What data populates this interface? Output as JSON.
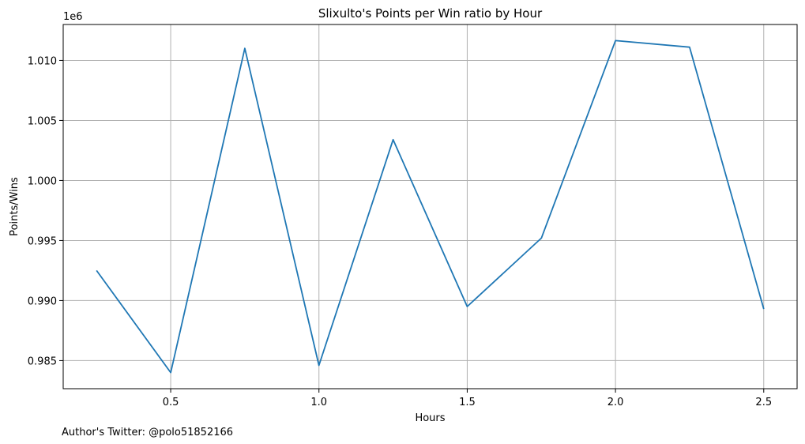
{
  "chart_data": {
    "type": "line",
    "title": "Slixulto's Points per Win ratio by Hour",
    "xlabel": "Hours",
    "ylabel": "Points/Wins",
    "y_offset_label": "1e6",
    "x": [
      0.25,
      0.5,
      0.75,
      1.0,
      1.25,
      1.5,
      1.75,
      2.0,
      2.25,
      2.5
    ],
    "series": [
      {
        "values": [
          992500,
          984000,
          1011000,
          984600,
          1003400,
          989500,
          995200,
          1011650,
          1011100,
          989300
        ],
        "color": "#1f77b4"
      }
    ],
    "xlim": [
      0.1375,
      2.6125
    ],
    "ylim": [
      982660,
      1012990
    ],
    "x_ticks": [
      0.5,
      1.0,
      1.5,
      2.0,
      2.5
    ],
    "x_tick_labels": [
      "0.5",
      "1.0",
      "1.5",
      "2.0",
      "2.5"
    ],
    "y_ticks": [
      985000,
      990000,
      995000,
      1000000,
      1005000,
      1010000
    ],
    "y_tick_labels": [
      "0.985",
      "0.990",
      "0.995",
      "1.000",
      "1.005",
      "1.010"
    ],
    "grid": true
  },
  "footer": {
    "note": "Author's Twitter: @polo51852166"
  }
}
